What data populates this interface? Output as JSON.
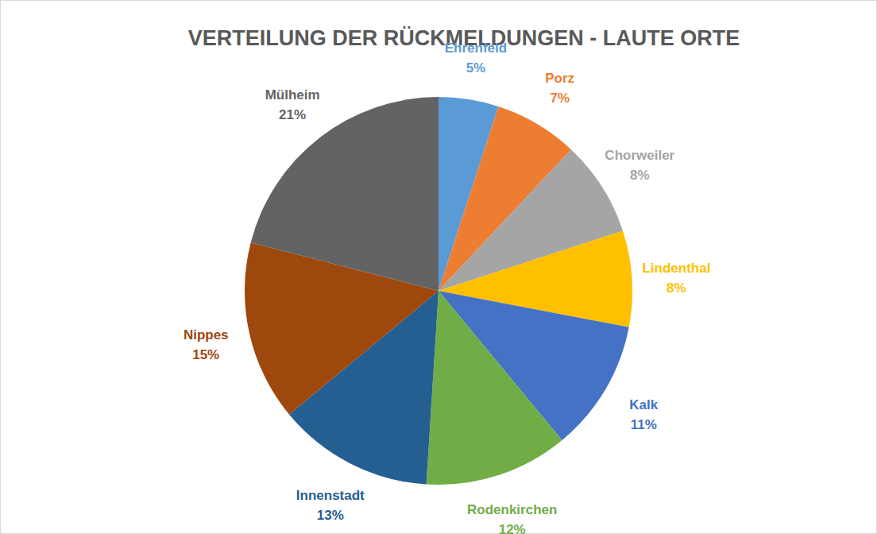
{
  "chart_data": {
    "type": "pie",
    "title": "VERTEILUNG DER RÜCKMELDUNGEN - LAUTE ORTE",
    "categories": [
      "Ehrenfeld",
      "Porz",
      "Chorweiler",
      "Lindenthal",
      "Kalk",
      "Rodenkirchen",
      "Innenstadt",
      "Nippes",
      "Mülheim"
    ],
    "values": [
      5,
      7,
      8,
      8,
      11,
      12,
      13,
      15,
      21
    ],
    "value_labels": [
      "5%",
      "7%",
      "8%",
      "8%",
      "11%",
      "12%",
      "13%",
      "15%",
      "21%"
    ],
    "colors": [
      "#5b9bd5",
      "#ed7d31",
      "#a5a5a5",
      "#ffc000",
      "#4472c4",
      "#70ad47",
      "#255e91",
      "#9e480e",
      "#636363"
    ],
    "data_labels": true
  }
}
